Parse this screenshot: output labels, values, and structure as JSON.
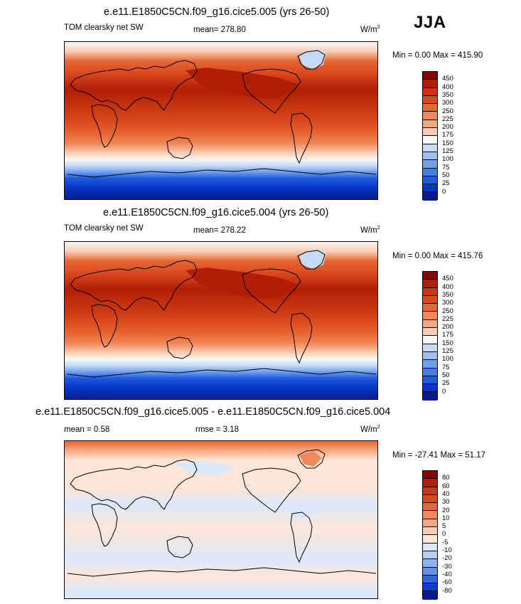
{
  "season": "JJA",
  "panels": [
    {
      "title": "e.e11.E1850C5CN.f09_g16.cice5.005 (yrs 26-50)",
      "left_label": "TOM clearsky net SW",
      "center_label": "mean= 278.80",
      "units_base": "W/m",
      "units_exp": "2",
      "minmax": "Min =   0.00 Max = 415.90",
      "colorbar": {
        "labels": [
          "450",
          "400",
          "350",
          "300",
          "250",
          "225",
          "200",
          "175",
          "150",
          "125",
          "100",
          "75",
          "50",
          "25",
          "0"
        ],
        "colors": [
          "#8b0000",
          "#b01e06",
          "#c9360f",
          "#d9481e",
          "#e76734",
          "#f0885a",
          "#f7a880",
          "#fccdb3",
          "#f7f7f7",
          "#c6dbf7",
          "#9dc0f5",
          "#6f9ff0",
          "#437ee8",
          "#1e5bde",
          "#0536c4",
          "#0a1a8a"
        ]
      }
    },
    {
      "title": "e.e11.E1850C5CN.f09_g16.cice5.004 (yrs 26-50)",
      "left_label": "TOM clearsky net SW",
      "center_label": "mean= 278.22",
      "units_base": "W/m",
      "units_exp": "2",
      "minmax": "Min =   0.00 Max = 415.76",
      "colorbar": {
        "labels": [
          "450",
          "400",
          "350",
          "300",
          "250",
          "225",
          "200",
          "175",
          "150",
          "125",
          "100",
          "75",
          "50",
          "25",
          "0"
        ],
        "colors": [
          "#8b0000",
          "#b01e06",
          "#c9360f",
          "#d9481e",
          "#e76734",
          "#f0885a",
          "#f7a880",
          "#fccdb3",
          "#f7f7f7",
          "#c6dbf7",
          "#9dc0f5",
          "#6f9ff0",
          "#437ee8",
          "#1e5bde",
          "#0536c4",
          "#0a1a8a"
        ]
      }
    },
    {
      "title": "e.e11.E1850C5CN.f09_g16.cice5.005 - e.e11.E1850C5CN.f09_g16.cice5.004",
      "left_label": "mean =   0.58",
      "center_label": "rmse =   3.18",
      "units_base": "W/m",
      "units_exp": "2",
      "minmax": "Min = -27.41 Max =  51.17",
      "colorbar": {
        "labels": [
          "80",
          "60",
          "40",
          "30",
          "20",
          "10",
          "5",
          "0",
          "-5",
          "-10",
          "-20",
          "-30",
          "-40",
          "-60",
          "-80"
        ],
        "colors": [
          "#8b0000",
          "#b01e06",
          "#c9360f",
          "#d9481e",
          "#e76734",
          "#f0885a",
          "#f7a880",
          "#fccdb3",
          "#fde6d8",
          "#dbe8fa",
          "#b6cff5",
          "#8db4f2",
          "#5f91ec",
          "#2f68e2",
          "#0a3fc8",
          "#0a1a8a"
        ]
      }
    }
  ]
}
